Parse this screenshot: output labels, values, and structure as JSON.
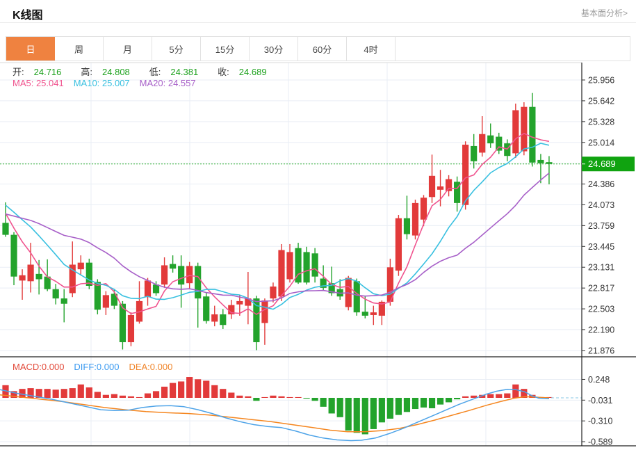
{
  "header": {
    "title": "K线图",
    "link": "基本面分析>"
  },
  "tabs": {
    "items": [
      {
        "label": "日",
        "active": true
      },
      {
        "label": "周",
        "active": false
      },
      {
        "label": "月",
        "active": false
      },
      {
        "label": "5分",
        "active": false
      },
      {
        "label": "15分",
        "active": false
      },
      {
        "label": "30分",
        "active": false
      },
      {
        "label": "60分",
        "active": false
      },
      {
        "label": "4时",
        "active": false
      }
    ]
  },
  "legend": {
    "open_label": "开:",
    "open_value": "24.716",
    "high_label": "高:",
    "high_value": "24.808",
    "low_label": "低:",
    "low_value": "24.381",
    "close_label": "收:",
    "close_value": "24.689",
    "ma5": "MA5: 25.041",
    "ma10": "MA10: 25.007",
    "ma20": "MA20: 24.557"
  },
  "macd_legend": {
    "macd": "MACD:0.000",
    "diff": "DIFF:0.000",
    "dea": "DEA:0.000"
  },
  "colors": {
    "up": "#e23a3a",
    "down": "#23a32c",
    "ma5": "#f0538e",
    "ma10": "#38c0e0",
    "ma20": "#a75fc8",
    "diff_line": "#4da3e8",
    "dea_line": "#f5861f",
    "tab_accent": "#ef8240",
    "value_green": "#1ea21e",
    "price_badge": "#10a310",
    "dotted_price_line": "#2db32d",
    "grid": "#e9eef5",
    "frame": "#222",
    "macd_text": "#e24a3a",
    "diff_text": "#3b9af0",
    "dea_text": "#f0862c",
    "dashed_baseline": "#9fd2ea"
  },
  "chart_data": {
    "type": "candlestick+macd",
    "title": "K线图 (daily)",
    "current_price": 24.689,
    "current_price_label": "24.689",
    "price_axis_ticks": [
      {
        "v": 25.956,
        "t": "25.956"
      },
      {
        "v": 25.642,
        "t": "25.642"
      },
      {
        "v": 25.328,
        "t": "25.328"
      },
      {
        "v": 25.014,
        "t": "25.014"
      },
      {
        "v": 24.7,
        "t": ""
      },
      {
        "v": 24.386,
        "t": "24.386"
      },
      {
        "v": 24.073,
        "t": "24.073"
      },
      {
        "v": 23.759,
        "t": "23.759"
      },
      {
        "v": 23.445,
        "t": "23.445"
      },
      {
        "v": 23.131,
        "t": "23.131"
      },
      {
        "v": 22.817,
        "t": "22.817"
      },
      {
        "v": 22.503,
        "t": "22.503"
      },
      {
        "v": 22.19,
        "t": "22.190"
      },
      {
        "v": 21.876,
        "t": "21.876"
      }
    ],
    "candles_ohlc": [
      [
        23.8,
        24.11,
        23.59,
        23.62
      ],
      [
        23.62,
        23.66,
        22.86,
        22.99
      ],
      [
        22.93,
        23.1,
        22.64,
        23.01
      ],
      [
        22.92,
        23.5,
        22.75,
        23.17
      ],
      [
        23.03,
        23.24,
        22.72,
        22.95
      ],
      [
        22.99,
        23.25,
        22.77,
        22.8
      ],
      [
        22.8,
        22.88,
        22.57,
        22.66
      ],
      [
        22.66,
        22.8,
        22.3,
        22.58
      ],
      [
        22.74,
        23.52,
        22.68,
        23.17
      ],
      [
        23.1,
        23.31,
        23.02,
        23.2
      ],
      [
        23.2,
        23.26,
        22.8,
        22.85
      ],
      [
        22.91,
        22.95,
        22.42,
        22.49
      ],
      [
        22.52,
        22.77,
        22.41,
        22.71
      ],
      [
        22.73,
        22.8,
        22.5,
        22.55
      ],
      [
        22.58,
        22.62,
        21.89,
        22.0
      ],
      [
        22.0,
        22.45,
        21.94,
        22.41
      ],
      [
        22.31,
        22.92,
        22.28,
        22.62
      ],
      [
        22.68,
        22.97,
        22.55,
        22.93
      ],
      [
        22.87,
        22.92,
        22.7,
        22.74
      ],
      [
        22.87,
        23.28,
        22.82,
        23.16
      ],
      [
        23.18,
        23.31,
        23.05,
        23.11
      ],
      [
        23.15,
        23.31,
        22.52,
        22.87
      ],
      [
        22.89,
        23.21,
        22.8,
        23.15
      ],
      [
        23.15,
        23.2,
        22.22,
        22.66
      ],
      [
        22.69,
        22.75,
        22.28,
        22.32
      ],
      [
        22.31,
        22.55,
        22.24,
        22.42
      ],
      [
        22.42,
        22.5,
        22.2,
        22.26
      ],
      [
        22.42,
        22.64,
        22.35,
        22.56
      ],
      [
        22.57,
        22.71,
        22.4,
        22.62
      ],
      [
        22.55,
        23.06,
        22.27,
        22.66
      ],
      [
        22.66,
        22.7,
        21.88,
        22.0
      ],
      [
        22.29,
        22.66,
        21.96,
        22.63
      ],
      [
        22.66,
        22.9,
        22.6,
        22.84
      ],
      [
        22.69,
        23.48,
        22.62,
        23.39
      ],
      [
        22.95,
        23.48,
        22.9,
        23.36
      ],
      [
        23.42,
        23.5,
        22.88,
        22.9
      ],
      [
        23.36,
        23.44,
        22.87,
        22.9
      ],
      [
        23.34,
        23.42,
        22.9,
        22.99
      ],
      [
        22.96,
        23.16,
        22.78,
        22.82
      ],
      [
        22.89,
        23.14,
        22.7,
        22.74
      ],
      [
        22.8,
        22.95,
        22.64,
        22.69
      ],
      [
        22.53,
        23.0,
        22.48,
        22.97
      ],
      [
        22.92,
        22.96,
        22.4,
        22.45
      ],
      [
        22.46,
        22.69,
        22.36,
        22.4
      ],
      [
        22.41,
        22.55,
        22.26,
        22.45
      ],
      [
        22.4,
        22.63,
        22.26,
        22.61
      ],
      [
        22.61,
        23.26,
        22.55,
        23.13
      ],
      [
        23.08,
        23.92,
        23.0,
        23.87
      ],
      [
        23.87,
        24.21,
        23.55,
        23.63
      ],
      [
        23.61,
        24.15,
        23.55,
        24.1
      ],
      [
        23.85,
        24.22,
        23.75,
        24.18
      ],
      [
        24.19,
        24.83,
        24.1,
        24.51
      ],
      [
        24.3,
        24.6,
        24.05,
        24.35
      ],
      [
        24.28,
        24.52,
        24.2,
        24.46
      ],
      [
        24.42,
        24.5,
        23.97,
        24.1
      ],
      [
        24.07,
        25.03,
        24.0,
        24.98
      ],
      [
        24.96,
        25.14,
        24.62,
        24.73
      ],
      [
        24.86,
        25.41,
        24.8,
        25.14
      ],
      [
        25.12,
        25.3,
        24.93,
        25.0
      ],
      [
        25.1,
        25.16,
        24.84,
        24.89
      ],
      [
        25.0,
        25.06,
        24.73,
        24.81
      ],
      [
        24.85,
        25.6,
        24.78,
        25.5
      ],
      [
        24.88,
        25.62,
        24.82,
        25.55
      ],
      [
        25.55,
        25.76,
        24.65,
        24.71
      ],
      [
        24.75,
        24.84,
        24.4,
        24.7
      ],
      [
        24.716,
        24.808,
        24.381,
        24.689
      ]
    ],
    "ma_periods": [
      5,
      10,
      20
    ],
    "ma_seed_closes": [
      23.6,
      23.7,
      23.8,
      23.9,
      24.0,
      23.85,
      23.75,
      23.7,
      23.8,
      23.9,
      24.05,
      24.15,
      24.25,
      24.3,
      24.2,
      24.1,
      24.05,
      24.0,
      23.95
    ],
    "macd": {
      "axis_ticks": [
        {
          "v": 0.248,
          "t": "0.248"
        },
        {
          "v": -0.031,
          "t": "-0.031"
        },
        {
          "v": -0.31,
          "t": "-0.310"
        },
        {
          "v": -0.589,
          "t": "-0.589"
        }
      ],
      "bars": [
        0.17,
        0.09,
        0.12,
        0.13,
        0.12,
        0.12,
        0.11,
        0.12,
        0.13,
        0.18,
        0.14,
        0.08,
        0.04,
        0.05,
        0.03,
        0.02,
        0.01,
        0.06,
        0.09,
        0.15,
        0.2,
        0.22,
        0.28,
        0.25,
        0.23,
        0.17,
        0.12,
        0.07,
        0.03,
        0.02,
        -0.04,
        0.01,
        0.03,
        0.02,
        0.01,
        0.01,
        -0.01,
        -0.04,
        -0.12,
        -0.21,
        -0.26,
        -0.44,
        -0.47,
        -0.49,
        -0.42,
        -0.33,
        -0.28,
        -0.23,
        -0.19,
        -0.15,
        -0.13,
        -0.14,
        -0.09,
        -0.06,
        -0.02,
        0.02,
        0.03,
        0.04,
        0.05,
        0.05,
        0.06,
        0.18,
        0.12,
        0.04,
        0.01,
        0.01
      ],
      "diff_points": [
        [
          0,
          0.11
        ],
        [
          25,
          0.06
        ],
        [
          50,
          0.02
        ],
        [
          75,
          -0.02
        ],
        [
          100,
          -0.07
        ],
        [
          125,
          -0.12
        ],
        [
          145,
          -0.16
        ],
        [
          165,
          -0.17
        ],
        [
          185,
          -0.165
        ],
        [
          205,
          -0.13
        ],
        [
          225,
          -0.11
        ],
        [
          245,
          -0.105
        ],
        [
          265,
          -0.12
        ],
        [
          285,
          -0.16
        ],
        [
          305,
          -0.21
        ],
        [
          325,
          -0.27
        ],
        [
          345,
          -0.32
        ],
        [
          365,
          -0.36
        ],
        [
          385,
          -0.385
        ],
        [
          405,
          -0.4
        ],
        [
          425,
          -0.445
        ],
        [
          445,
          -0.5
        ],
        [
          465,
          -0.54
        ],
        [
          485,
          -0.565
        ],
        [
          505,
          -0.575
        ],
        [
          520,
          -0.57
        ],
        [
          540,
          -0.54
        ],
        [
          560,
          -0.48
        ],
        [
          580,
          -0.41
        ],
        [
          600,
          -0.33
        ],
        [
          620,
          -0.25
        ],
        [
          640,
          -0.17
        ],
        [
          660,
          -0.09
        ],
        [
          680,
          -0.02
        ],
        [
          700,
          0.05
        ],
        [
          715,
          0.09
        ],
        [
          730,
          0.115
        ],
        [
          742,
          0.11
        ],
        [
          755,
          0.08
        ],
        [
          765,
          0.03
        ],
        [
          775,
          -0.005
        ],
        [
          790,
          -0.01
        ]
      ],
      "dea_points": [
        [
          0,
          0.04
        ],
        [
          30,
          0.01
        ],
        [
          60,
          -0.02
        ],
        [
          90,
          -0.05
        ],
        [
          120,
          -0.09
        ],
        [
          150,
          -0.13
        ],
        [
          180,
          -0.16
        ],
        [
          210,
          -0.185
        ],
        [
          240,
          -0.2
        ],
        [
          270,
          -0.21
        ],
        [
          300,
          -0.23
        ],
        [
          330,
          -0.26
        ],
        [
          360,
          -0.29
        ],
        [
          390,
          -0.32
        ],
        [
          420,
          -0.36
        ],
        [
          450,
          -0.4
        ],
        [
          475,
          -0.435
        ],
        [
          500,
          -0.455
        ],
        [
          525,
          -0.455
        ],
        [
          550,
          -0.44
        ],
        [
          575,
          -0.41
        ],
        [
          600,
          -0.36
        ],
        [
          625,
          -0.3
        ],
        [
          650,
          -0.235
        ],
        [
          675,
          -0.17
        ],
        [
          700,
          -0.1
        ],
        [
          720,
          -0.05
        ],
        [
          740,
          -0.005
        ],
        [
          755,
          0.015
        ],
        [
          770,
          0.01
        ],
        [
          780,
          0.005
        ],
        [
          790,
          0.0
        ]
      ]
    },
    "layout_hints": {
      "grid": true,
      "price_axis_side": "right",
      "panels": [
        "price",
        "macd"
      ]
    }
  }
}
